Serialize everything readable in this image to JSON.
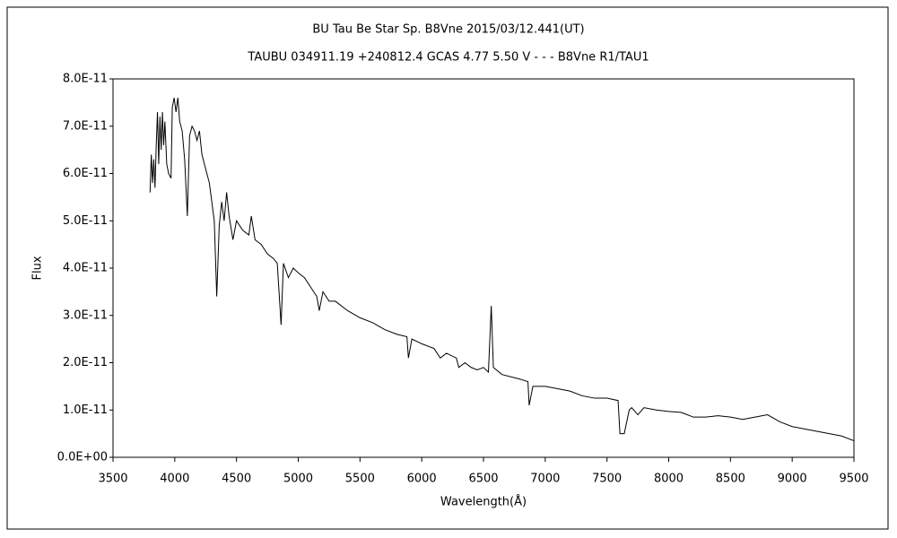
{
  "chart_data": {
    "type": "line",
    "title": "BU Tau    Be Star    Sp. B8Vne    2015/03/12.441(UT)",
    "subtitle": "TAUBU 034911.19 +240812.4 GCAS 4.77 5.50 V - - - B8Vne R1/TAU1",
    "x_label": "Wavelength(Å)",
    "y_label": "Flux",
    "xlim": [
      3500,
      9500
    ],
    "xticks": [
      3500,
      4000,
      4500,
      5000,
      5500,
      6000,
      6500,
      7000,
      7500,
      8000,
      8500,
      9000,
      9500
    ],
    "ylim": [
      0,
      8e-11
    ],
    "yticks": [
      {
        "value": 0,
        "label": "0.0E+00"
      },
      {
        "value": 1e-11,
        "label": "1.0E-11"
      },
      {
        "value": 2e-11,
        "label": "2.0E-11"
      },
      {
        "value": 3e-11,
        "label": "3.0E-11"
      },
      {
        "value": 4e-11,
        "label": "4.0E-11"
      },
      {
        "value": 5e-11,
        "label": "5.0E-11"
      },
      {
        "value": 6e-11,
        "label": "6.0E-11"
      },
      {
        "value": 7e-11,
        "label": "7.0E-11"
      },
      {
        "value": 8e-11,
        "label": "8.0E-11"
      }
    ],
    "grid": false,
    "x": [
      3800,
      3810,
      3820,
      3830,
      3840,
      3850,
      3860,
      3870,
      3880,
      3890,
      3900,
      3910,
      3920,
      3935,
      3950,
      3970,
      3980,
      3995,
      4010,
      4025,
      4040,
      4060,
      4080,
      4102,
      4120,
      4140,
      4160,
      4180,
      4200,
      4220,
      4240,
      4260,
      4280,
      4300,
      4320,
      4340,
      4360,
      4380,
      4400,
      4420,
      4440,
      4471,
      4500,
      4550,
      4600,
      4620,
      4650,
      4700,
      4750,
      4800,
      4830,
      4861,
      4880,
      4920,
      4960,
      5000,
      5050,
      5100,
      5150,
      5170,
      5200,
      5250,
      5300,
      5350,
      5400,
      5500,
      5600,
      5700,
      5800,
      5880,
      5892,
      5920,
      6000,
      6100,
      6150,
      6200,
      6280,
      6300,
      6350,
      6400,
      6450,
      6500,
      6540,
      6563,
      6580,
      6650,
      6800,
      6860,
      6870,
      6900,
      7000,
      7100,
      7200,
      7300,
      7400,
      7500,
      7590,
      7605,
      7640,
      7680,
      7700,
      7750,
      7800,
      7900,
      8000,
      8100,
      8200,
      8300,
      8400,
      8500,
      8600,
      8700,
      8800,
      8900,
      9000,
      9100,
      9200,
      9300,
      9400,
      9500
    ],
    "series": [
      {
        "name": "Flux",
        "color": "#000000",
        "values": [
          5.6e-11,
          6.4e-11,
          5.8e-11,
          6.3e-11,
          5.7e-11,
          6.6e-11,
          7.3e-11,
          6.2e-11,
          7.2e-11,
          6.5e-11,
          7.3e-11,
          6.6e-11,
          7.1e-11,
          6.2e-11,
          6e-11,
          5.9e-11,
          7.4e-11,
          7.6e-11,
          7.3e-11,
          7.6e-11,
          7.1e-11,
          6.9e-11,
          6.3e-11,
          5.1e-11,
          6.8e-11,
          7e-11,
          6.9e-11,
          6.7e-11,
          6.9e-11,
          6.4e-11,
          6.2e-11,
          6e-11,
          5.8e-11,
          5.4e-11,
          5e-11,
          3.4e-11,
          4.9e-11,
          5.4e-11,
          5e-11,
          5.6e-11,
          5.1e-11,
          4.6e-11,
          5e-11,
          4.8e-11,
          4.7e-11,
          5.1e-11,
          4.6e-11,
          4.5e-11,
          4.3e-11,
          4.2e-11,
          4.1e-11,
          2.8e-11,
          4.1e-11,
          3.8e-11,
          4e-11,
          3.9e-11,
          3.8e-11,
          3.6e-11,
          3.4e-11,
          3.1e-11,
          3.5e-11,
          3.3e-11,
          3.3e-11,
          3.2e-11,
          3.1e-11,
          2.95e-11,
          2.85e-11,
          2.7e-11,
          2.6e-11,
          2.55e-11,
          2.1e-11,
          2.5e-11,
          2.4e-11,
          2.3e-11,
          2.1e-11,
          2.2e-11,
          2.1e-11,
          1.9e-11,
          2e-11,
          1.9e-11,
          1.85e-11,
          1.9e-11,
          1.8e-11,
          3.2e-11,
          1.9e-11,
          1.75e-11,
          1.65e-11,
          1.6e-11,
          1.1e-11,
          1.5e-11,
          1.5e-11,
          1.45e-11,
          1.4e-11,
          1.3e-11,
          1.25e-11,
          1.25e-11,
          1.2e-11,
          5e-12,
          5e-12,
          1e-11,
          1.05e-11,
          9e-12,
          1.05e-11,
          1e-11,
          9.7e-12,
          9.5e-12,
          8.5e-12,
          8.5e-12,
          8.8e-12,
          8.5e-12,
          8e-12,
          8.5e-12,
          9e-12,
          7.5e-12,
          6.5e-12,
          6e-12,
          5.5e-12,
          5e-12,
          4.5e-12,
          3.5e-12
        ]
      }
    ]
  }
}
